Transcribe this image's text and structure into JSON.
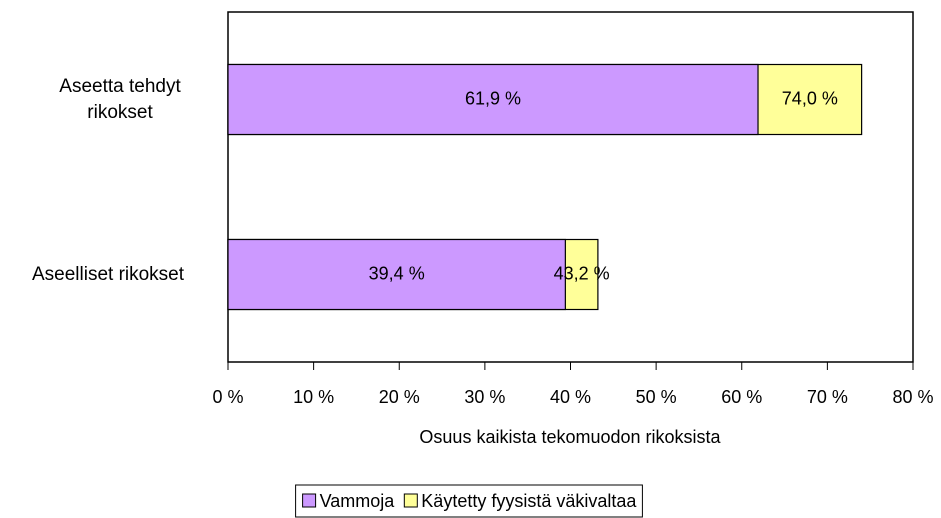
{
  "chart_data": {
    "type": "bar",
    "orientation": "horizontal",
    "barmode": "overlay",
    "categories": [
      "Aseetta tehdyt rikokset",
      "Aseelliset rikokset"
    ],
    "series": [
      {
        "name": "Vammoja",
        "color": "#cc99ff",
        "values": [
          61.9,
          39.4
        ],
        "value_labels": [
          "61,9 %",
          "39,4 %"
        ]
      },
      {
        "name": "Käytetty fyysistä väkivaltaa",
        "color": "#ffff99",
        "values": [
          74.0,
          43.2
        ],
        "value_labels": [
          "74,0 %",
          "43,2 %"
        ]
      }
    ],
    "xlabel": "Osuus kaikista tekomuodon rikoksista",
    "xlim": [
      0,
      80
    ],
    "xticks": [
      {
        "value": 0,
        "label": "0 %"
      },
      {
        "value": 10,
        "label": "10 %"
      },
      {
        "value": 20,
        "label": "20 %"
      },
      {
        "value": 30,
        "label": "30 %"
      },
      {
        "value": 40,
        "label": "40 %"
      },
      {
        "value": 50,
        "label": "50 %"
      },
      {
        "value": 60,
        "label": "60 %"
      },
      {
        "value": 70,
        "label": "70 %"
      },
      {
        "value": 80,
        "label": "80 %"
      }
    ],
    "legend": "bottom"
  }
}
